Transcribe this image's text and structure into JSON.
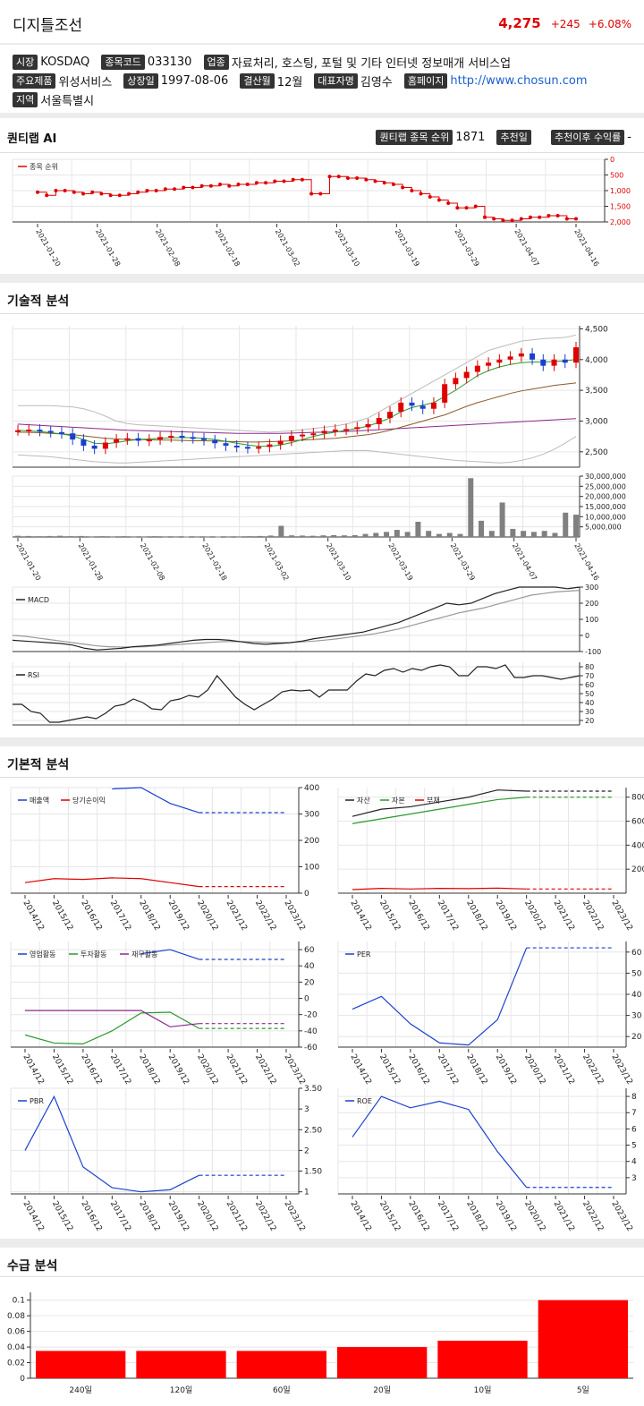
{
  "header": {
    "name": "디지틀조선",
    "price": "4,275",
    "change": "+245",
    "pct": "+6.08%"
  },
  "info": {
    "market_label": "시장",
    "market": "KOSDAQ",
    "code_label": "종목코드",
    "code": "033130",
    "industry_label": "업종",
    "industry": "자료처리, 호스팅, 포털 및 기타 인터넷 정보매개 서비스업",
    "product_label": "주요제품",
    "product": "위성서비스",
    "listed_label": "상장일",
    "listed": "1997-08-06",
    "fiscal_label": "결산월",
    "fiscal": "12월",
    "ceo_label": "대표자명",
    "ceo": "김영수",
    "homepage_label": "홈페이지",
    "homepage": "http://www.chosun.com",
    "region_label": "지역",
    "region": "서울특별시"
  },
  "quant": {
    "title": "퀀티랩 AI",
    "rank_label": "퀀티랩 종목 순위",
    "rank": "1871",
    "rec_date_label": "추천일",
    "rec_return_label": "추천이후 수익률",
    "rec_return": "-"
  },
  "sections": {
    "technical": "기술적 분석",
    "fundamental": "기본적 분석",
    "supply": "수급 분석"
  },
  "dates": [
    "2021-01-20",
    "2021-01-28",
    "2021-02-08",
    "2021-02-18",
    "2021-03-02",
    "2021-03-10",
    "2021-03-19",
    "2021-03-29",
    "2021-04-07",
    "2021-04-16"
  ],
  "years": [
    "2014/12",
    "2015/12",
    "2016/12",
    "2017/12",
    "2018/12",
    "2019/12",
    "2020/12",
    "2021/12",
    "2022/12",
    "2023/12"
  ],
  "colors": {
    "up": "#e00000",
    "down": "#1a3fd0",
    "green": "#2a9a2a",
    "purple": "#8a2a8a"
  },
  "chart_data": [
    {
      "type": "line",
      "id": "rank",
      "legend": [
        "종목 순위"
      ],
      "ylim": [
        0,
        2000
      ],
      "yticks": [
        "0",
        "500",
        "1,000",
        "1,500",
        "2,000"
      ],
      "reversed": true,
      "values": [
        1050,
        1150,
        1000,
        1000,
        1050,
        1100,
        1050,
        1100,
        1150,
        1150,
        1100,
        1050,
        1000,
        1000,
        950,
        950,
        900,
        900,
        850,
        850,
        800,
        850,
        800,
        800,
        750,
        750,
        700,
        700,
        650,
        650,
        1100,
        1100,
        550,
        550,
        600,
        600,
        650,
        700,
        750,
        800,
        900,
        1000,
        1100,
        1200,
        1300,
        1400,
        1550,
        1550,
        1500,
        1850,
        1900,
        1950,
        1950,
        1900,
        1850,
        1850,
        1800,
        1800,
        1900,
        1900
      ]
    },
    {
      "type": "candlestick",
      "id": "price",
      "ylim": [
        2250,
        4550
      ],
      "yticks": [
        "2,500",
        "3,000",
        "3,500",
        "4,000",
        "4,500"
      ],
      "close": [
        2850,
        2860,
        2840,
        2820,
        2800,
        2700,
        2600,
        2550,
        2650,
        2700,
        2720,
        2680,
        2700,
        2740,
        2760,
        2740,
        2720,
        2690,
        2640,
        2600,
        2580,
        2560,
        2580,
        2620,
        2680,
        2760,
        2780,
        2800,
        2840,
        2860,
        2870,
        2900,
        2950,
        3050,
        3150,
        3300,
        3250,
        3200,
        3300,
        3600,
        3700,
        3800,
        3900,
        3950,
        4000,
        4050,
        4100,
        4000,
        3900,
        4000,
        3950,
        4200
      ],
      "ma5": [
        2850,
        2840,
        2830,
        2810,
        2790,
        2760,
        2700,
        2640,
        2630,
        2650,
        2680,
        2700,
        2710,
        2720,
        2730,
        2730,
        2730,
        2720,
        2700,
        2670,
        2640,
        2610,
        2590,
        2590,
        2610,
        2650,
        2700,
        2750,
        2790,
        2820,
        2850,
        2880,
        2920,
        2980,
        3050,
        3150,
        3220,
        3260,
        3300,
        3400,
        3500,
        3620,
        3740,
        3820,
        3880,
        3920,
        3950,
        3960,
        3960,
        3970,
        3980,
        4000
      ],
      "ma20": [
        2820,
        2815,
        2810,
        2800,
        2790,
        2780,
        2760,
        2740,
        2720,
        2710,
        2700,
        2700,
        2695,
        2690,
        2690,
        2685,
        2680,
        2680,
        2675,
        2670,
        2665,
        2660,
        2660,
        2665,
        2670,
        2680,
        2690,
        2700,
        2710,
        2720,
        2740,
        2760,
        2780,
        2810,
        2850,
        2900,
        2950,
        3000,
        3050,
        3100,
        3170,
        3240,
        3300,
        3350,
        3400,
        3450,
        3490,
        3520,
        3550,
        3580,
        3600,
        3620
      ],
      "ma60": [
        2950,
        2940,
        2930,
        2920,
        2910,
        2900,
        2890,
        2880,
        2870,
        2860,
        2850,
        2845,
        2840,
        2835,
        2830,
        2825,
        2820,
        2815,
        2810,
        2805,
        2800,
        2800,
        2800,
        2800,
        2800,
        2805,
        2810,
        2815,
        2820,
        2825,
        2830,
        2840,
        2850,
        2860,
        2870,
        2880,
        2890,
        2900,
        2910,
        2920,
        2930,
        2940,
        2950,
        2960,
        2970,
        2980,
        2990,
        3000,
        3010,
        3020,
        3030,
        3040
      ],
      "bb_upper": [
        3250,
        3250,
        3250,
        3250,
        3240,
        3230,
        3200,
        3150,
        3080,
        3000,
        2960,
        2940,
        2930,
        2920,
        2910,
        2900,
        2890,
        2880,
        2870,
        2860,
        2850,
        2840,
        2830,
        2820,
        2830,
        2840,
        2860,
        2880,
        2900,
        2920,
        2950,
        3000,
        3050,
        3150,
        3250,
        3350,
        3450,
        3550,
        3650,
        3750,
        3850,
        3950,
        4050,
        4150,
        4200,
        4250,
        4300,
        4320,
        4340,
        4350,
        4360,
        4400
      ],
      "bb_lower": [
        2450,
        2440,
        2430,
        2420,
        2400,
        2380,
        2360,
        2340,
        2330,
        2320,
        2320,
        2330,
        2340,
        2350,
        2360,
        2370,
        2380,
        2390,
        2400,
        2410,
        2420,
        2430,
        2440,
        2450,
        2460,
        2470,
        2480,
        2490,
        2500,
        2510,
        2520,
        2520,
        2520,
        2500,
        2480,
        2460,
        2440,
        2420,
        2400,
        2380,
        2360,
        2350,
        2340,
        2330,
        2320,
        2330,
        2360,
        2400,
        2460,
        2540,
        2640,
        2750
      ]
    },
    {
      "type": "bar",
      "id": "volume",
      "ylim": [
        0,
        30000000
      ],
      "yticks": [
        "5,000,000",
        "10,000,000",
        "15,000,000",
        "20,000,000",
        "25,000,000",
        "30,000,000"
      ],
      "values": [
        600000,
        500000,
        400000,
        500000,
        600000,
        400000,
        500000,
        300000,
        400000,
        300000,
        400000,
        300000,
        300000,
        400000,
        300000,
        300000,
        200000,
        300000,
        300000,
        200000,
        300000,
        300000,
        400000,
        500000,
        700000,
        5500000,
        800000,
        700000,
        600000,
        800000,
        900000,
        800000,
        900000,
        1500000,
        2000000,
        2500000,
        3500000,
        2500000,
        7500000,
        3000000,
        1500000,
        2000000,
        1500000,
        29000000,
        8000000,
        3000000,
        17000000,
        4000000,
        3000000,
        2500000,
        3000000,
        2000000,
        12000000,
        11000000
      ]
    },
    {
      "type": "line",
      "id": "macd",
      "legend": [
        "MACD"
      ],
      "ylim": [
        -100,
        300
      ],
      "yticks": [
        "-100",
        "0",
        "100",
        "200",
        "300"
      ],
      "macd": [
        -30,
        -35,
        -40,
        -45,
        -50,
        -60,
        -80,
        -90,
        -85,
        -80,
        -70,
        -65,
        -60,
        -50,
        -40,
        -30,
        -25,
        -25,
        -30,
        -40,
        -50,
        -55,
        -50,
        -45,
        -35,
        -20,
        -10,
        0,
        10,
        20,
        40,
        60,
        80,
        110,
        140,
        170,
        200,
        190,
        200,
        230,
        260,
        280,
        300,
        300,
        300,
        300,
        290,
        300
      ],
      "signal": [
        0,
        -5,
        -15,
        -25,
        -35,
        -45,
        -55,
        -65,
        -70,
        -72,
        -72,
        -70,
        -65,
        -60,
        -55,
        -50,
        -45,
        -40,
        -38,
        -38,
        -40,
        -42,
        -45,
        -44,
        -40,
        -35,
        -28,
        -20,
        -10,
        0,
        10,
        25,
        40,
        60,
        80,
        100,
        120,
        140,
        155,
        170,
        190,
        210,
        230,
        250,
        260,
        270,
        275,
        280
      ]
    },
    {
      "type": "line",
      "id": "rsi",
      "legend": [
        "RSI"
      ],
      "ylim": [
        15,
        85
      ],
      "yticks": [
        "20",
        "30",
        "40",
        "50",
        "60",
        "70",
        "80"
      ],
      "values": [
        38,
        38,
        30,
        28,
        18,
        18,
        20,
        22,
        24,
        22,
        28,
        36,
        38,
        44,
        40,
        33,
        32,
        42,
        44,
        48,
        46,
        54,
        70,
        58,
        46,
        38,
        32,
        38,
        44,
        52,
        54,
        53,
        54,
        46,
        54,
        54,
        54,
        64,
        72,
        70,
        76,
        78,
        74,
        78,
        76,
        80,
        82,
        80,
        70,
        70,
        80,
        80,
        78,
        82,
        68,
        68,
        70,
        70,
        68,
        66,
        68,
        70
      ]
    },
    {
      "type": "line",
      "id": "sales",
      "legend": [
        "매출액",
        "당기순이익"
      ],
      "ylim": [
        0,
        400
      ],
      "yticks": [
        "0",
        "100",
        "200",
        "300",
        "400"
      ],
      "series": [
        {
          "name": "매출액",
          "color": "#1a3fd0",
          "values": [
            null,
            null,
            null,
            395,
            400,
            340,
            305,
            305,
            305,
            305
          ]
        },
        {
          "name": "당기순이익",
          "color": "#e00000",
          "values": [
            40,
            55,
            52,
            58,
            55,
            40,
            25,
            25,
            25,
            25
          ]
        }
      ]
    },
    {
      "type": "line",
      "id": "assets",
      "legend": [
        "자산",
        "자본",
        "부채"
      ],
      "ylim": [
        0,
        880
      ],
      "yticks": [
        "200",
        "400",
        "600",
        "800"
      ],
      "series": [
        {
          "name": "자산",
          "color": "#222222",
          "values": [
            640,
            700,
            720,
            760,
            800,
            860,
            850,
            850,
            850,
            850
          ]
        },
        {
          "name": "자본",
          "color": "#2a9a2a",
          "values": [
            580,
            620,
            660,
            700,
            740,
            780,
            800,
            800,
            800,
            800
          ]
        },
        {
          "name": "부채",
          "color": "#e00000",
          "values": [
            30,
            40,
            35,
            40,
            38,
            42,
            35,
            35,
            35,
            35
          ]
        }
      ]
    },
    {
      "type": "line",
      "id": "cashflow",
      "legend": [
        "영업활동",
        "투자활동",
        "재무활동"
      ],
      "ylim": [
        -60,
        70
      ],
      "yticks": [
        "-60",
        "-40",
        "-20",
        "0",
        "20",
        "40",
        "60"
      ],
      "series": [
        {
          "name": "영업활동",
          "color": "#1a3fd0",
          "values": [
            null,
            null,
            null,
            null,
            55,
            60,
            48,
            48,
            48,
            48
          ]
        },
        {
          "name": "투자활동",
          "color": "#2a9a2a",
          "values": [
            -45,
            -55,
            -56,
            -40,
            -18,
            -17,
            -37,
            -37,
            -37,
            -37
          ]
        },
        {
          "name": "재무활동",
          "color": "#8a2a8a",
          "values": [
            -15,
            -15,
            -15,
            -15,
            -15,
            -35,
            -31,
            -31,
            -31,
            -31
          ]
        }
      ]
    },
    {
      "type": "line",
      "id": "per",
      "legend": [
        "PER"
      ],
      "ylim": [
        15,
        65
      ],
      "yticks": [
        "20",
        "30",
        "40",
        "50",
        "60"
      ],
      "series": [
        {
          "name": "PER",
          "color": "#1a3fd0",
          "values": [
            33,
            39,
            26,
            17,
            16,
            28,
            62,
            62,
            62,
            62
          ]
        }
      ]
    },
    {
      "type": "line",
      "id": "pbr",
      "legend": [
        "PBR"
      ],
      "ylim": [
        0.95,
        3.5
      ],
      "yticks": [
        "1",
        "1.50",
        "2",
        "2.50",
        "3",
        "3.50"
      ],
      "series": [
        {
          "name": "PBR",
          "color": "#1a3fd0",
          "values": [
            2.0,
            3.3,
            1.6,
            1.1,
            1.0,
            1.05,
            1.4,
            1.4,
            1.4,
            1.4
          ]
        }
      ]
    },
    {
      "type": "line",
      "id": "roe",
      "legend": [
        "ROE"
      ],
      "ylim": [
        2,
        8.5
      ],
      "yticks": [
        "3",
        "4",
        "5",
        "6",
        "7",
        "8"
      ],
      "series": [
        {
          "name": "ROE",
          "color": "#1a3fd0",
          "values": [
            5.5,
            8.0,
            7.3,
            7.7,
            7.2,
            4.6,
            2.4,
            2.4,
            2.4,
            2.4
          ]
        }
      ]
    },
    {
      "type": "bar",
      "id": "supply",
      "categories": [
        "240일",
        "120일",
        "60일",
        "20일",
        "10일",
        "5일"
      ],
      "values": [
        0.035,
        0.035,
        0.035,
        0.04,
        0.048,
        0.1
      ],
      "ylim": [
        0,
        0.11
      ],
      "yticks": [
        "0",
        "0.02",
        "0.04",
        "0.06",
        "0.08",
        "0.1"
      ]
    }
  ]
}
